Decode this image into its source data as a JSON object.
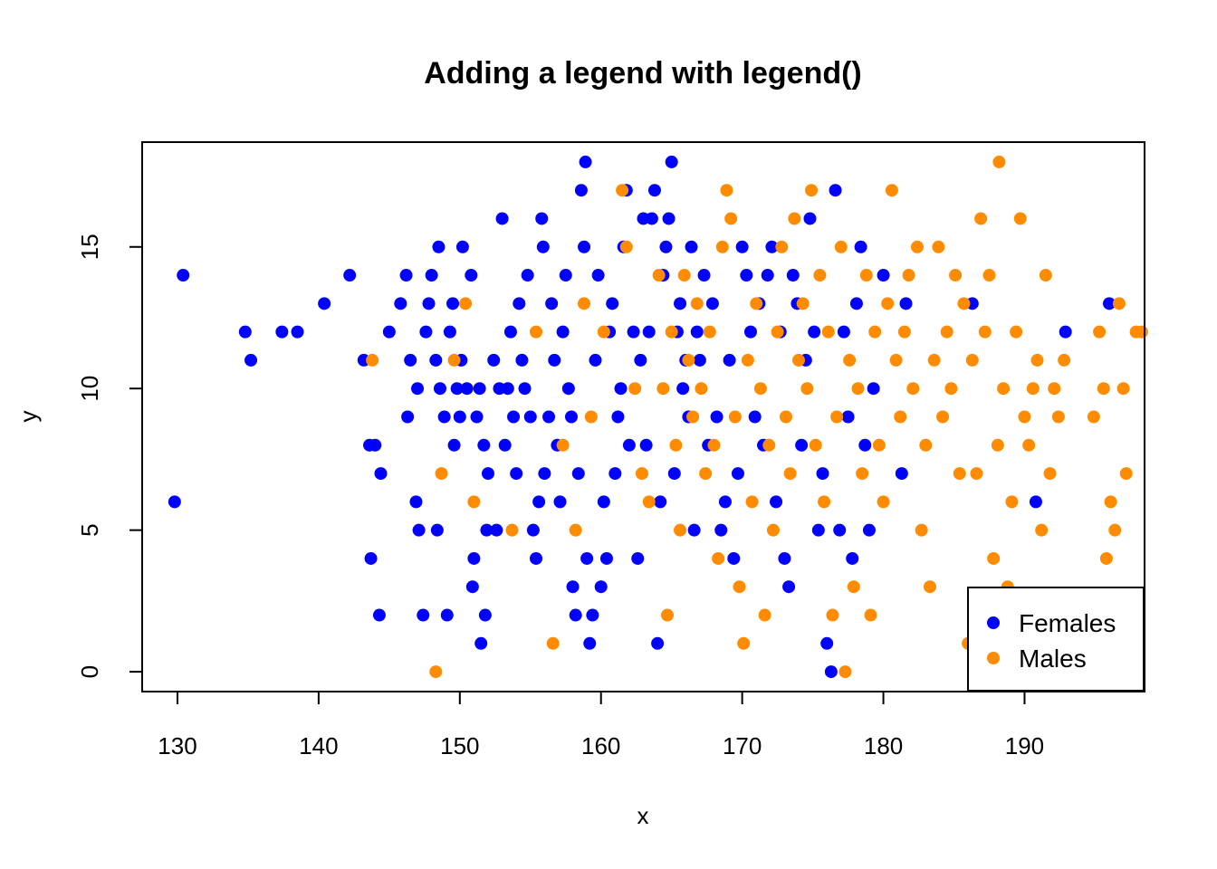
{
  "chart_data": {
    "type": "scatter",
    "title": "Adding a legend with legend()",
    "xlabel": "x",
    "ylabel": "y",
    "xlim": [
      127.5,
      198.5
    ],
    "ylim": [
      -0.7,
      18.7
    ],
    "x_ticks": [
      130,
      140,
      150,
      160,
      170,
      180,
      190
    ],
    "x_tick_labels": [
      "130",
      "140",
      "150",
      "160",
      "170",
      "180",
      "190"
    ],
    "y_ticks": [
      0,
      5,
      10,
      15
    ],
    "y_tick_labels": [
      "0",
      "5",
      "10",
      "15"
    ],
    "grid": false,
    "legend_position": "bottom-right",
    "series": [
      {
        "name": "Females",
        "color": "#0000ff",
        "points": [
          [
            129.8,
            6
          ],
          [
            130.4,
            14
          ],
          [
            134.8,
            12
          ],
          [
            135.2,
            11
          ],
          [
            137.4,
            12
          ],
          [
            138.5,
            12
          ],
          [
            140.4,
            13
          ],
          [
            142.2,
            14
          ],
          [
            143.2,
            11
          ],
          [
            143.6,
            8
          ],
          [
            143.7,
            4
          ],
          [
            144.0,
            8
          ],
          [
            144.3,
            2
          ],
          [
            144.4,
            7
          ],
          [
            145.0,
            12
          ],
          [
            145.8,
            13
          ],
          [
            146.2,
            14
          ],
          [
            146.3,
            9
          ],
          [
            146.5,
            11
          ],
          [
            146.9,
            6
          ],
          [
            147.0,
            10
          ],
          [
            147.1,
            5
          ],
          [
            147.4,
            2
          ],
          [
            147.6,
            12
          ],
          [
            147.8,
            13
          ],
          [
            148.0,
            14
          ],
          [
            148.3,
            11
          ],
          [
            148.4,
            5
          ],
          [
            148.5,
            15
          ],
          [
            148.6,
            10
          ],
          [
            148.9,
            9
          ],
          [
            149.1,
            2
          ],
          [
            149.3,
            12
          ],
          [
            149.5,
            13
          ],
          [
            149.6,
            8
          ],
          [
            149.8,
            10
          ],
          [
            150.0,
            9
          ],
          [
            150.1,
            11
          ],
          [
            150.2,
            15
          ],
          [
            150.5,
            10
          ],
          [
            150.8,
            14
          ],
          [
            150.9,
            3
          ],
          [
            151.0,
            4
          ],
          [
            151.2,
            9
          ],
          [
            151.4,
            10
          ],
          [
            151.5,
            1
          ],
          [
            151.7,
            8
          ],
          [
            151.8,
            2
          ],
          [
            151.9,
            5
          ],
          [
            152.0,
            7
          ],
          [
            152.4,
            11
          ],
          [
            152.6,
            5
          ],
          [
            152.8,
            10
          ],
          [
            153.0,
            16
          ],
          [
            153.2,
            8
          ],
          [
            153.4,
            10
          ],
          [
            153.6,
            12
          ],
          [
            153.8,
            9
          ],
          [
            154.0,
            7
          ],
          [
            154.2,
            13
          ],
          [
            154.4,
            11
          ],
          [
            154.6,
            10
          ],
          [
            154.8,
            14
          ],
          [
            155.0,
            9
          ],
          [
            155.2,
            5
          ],
          [
            155.4,
            4
          ],
          [
            155.6,
            6
          ],
          [
            155.8,
            16
          ],
          [
            155.9,
            15
          ],
          [
            156.0,
            7
          ],
          [
            156.3,
            9
          ],
          [
            156.5,
            13
          ],
          [
            156.7,
            11
          ],
          [
            156.9,
            8
          ],
          [
            157.1,
            6
          ],
          [
            157.3,
            12
          ],
          [
            157.5,
            14
          ],
          [
            157.7,
            10
          ],
          [
            157.9,
            9
          ],
          [
            158.0,
            3
          ],
          [
            158.2,
            2
          ],
          [
            158.4,
            7
          ],
          [
            158.6,
            17
          ],
          [
            158.8,
            15
          ],
          [
            158.9,
            18
          ],
          [
            159.0,
            4
          ],
          [
            159.2,
            1
          ],
          [
            159.4,
            2
          ],
          [
            159.6,
            11
          ],
          [
            159.8,
            14
          ],
          [
            160.0,
            3
          ],
          [
            160.2,
            6
          ],
          [
            160.4,
            4
          ],
          [
            160.6,
            12
          ],
          [
            160.8,
            13
          ],
          [
            161.0,
            7
          ],
          [
            161.2,
            9
          ],
          [
            161.4,
            10
          ],
          [
            161.6,
            15
          ],
          [
            161.8,
            17
          ],
          [
            162.0,
            8
          ],
          [
            162.3,
            12
          ],
          [
            162.6,
            4
          ],
          [
            162.8,
            11
          ],
          [
            163.0,
            16
          ],
          [
            163.2,
            8
          ],
          [
            163.4,
            12
          ],
          [
            163.6,
            16
          ],
          [
            163.8,
            17
          ],
          [
            164.0,
            1
          ],
          [
            164.2,
            6
          ],
          [
            164.4,
            14
          ],
          [
            164.6,
            15
          ],
          [
            164.8,
            16
          ],
          [
            165.0,
            18
          ],
          [
            165.2,
            7
          ],
          [
            165.4,
            12
          ],
          [
            165.6,
            13
          ],
          [
            165.8,
            10
          ],
          [
            166.0,
            11
          ],
          [
            166.2,
            9
          ],
          [
            166.4,
            15
          ],
          [
            166.6,
            5
          ],
          [
            166.8,
            12
          ],
          [
            167.0,
            11
          ],
          [
            167.3,
            14
          ],
          [
            167.6,
            8
          ],
          [
            167.9,
            13
          ],
          [
            168.2,
            9
          ],
          [
            168.5,
            5
          ],
          [
            168.8,
            6
          ],
          [
            169.1,
            11
          ],
          [
            169.4,
            4
          ],
          [
            169.7,
            7
          ],
          [
            170.0,
            15
          ],
          [
            170.3,
            14
          ],
          [
            170.6,
            12
          ],
          [
            170.9,
            9
          ],
          [
            171.2,
            13
          ],
          [
            171.5,
            8
          ],
          [
            171.8,
            14
          ],
          [
            172.1,
            15
          ],
          [
            172.4,
            6
          ],
          [
            172.7,
            12
          ],
          [
            173.0,
            4
          ],
          [
            173.3,
            3
          ],
          [
            173.6,
            14
          ],
          [
            173.9,
            13
          ],
          [
            174.2,
            8
          ],
          [
            174.5,
            11
          ],
          [
            174.8,
            16
          ],
          [
            175.1,
            12
          ],
          [
            175.4,
            5
          ],
          [
            175.7,
            7
          ],
          [
            176.0,
            1
          ],
          [
            176.3,
            0
          ],
          [
            176.6,
            17
          ],
          [
            176.9,
            5
          ],
          [
            177.2,
            12
          ],
          [
            177.5,
            9
          ],
          [
            177.8,
            4
          ],
          [
            178.1,
            13
          ],
          [
            178.4,
            15
          ],
          [
            178.7,
            8
          ],
          [
            179.0,
            5
          ],
          [
            179.3,
            10
          ],
          [
            180.0,
            14
          ],
          [
            181.3,
            7
          ],
          [
            181.6,
            13
          ],
          [
            186.3,
            13
          ],
          [
            190.8,
            6
          ],
          [
            192.9,
            12
          ],
          [
            196.0,
            13
          ]
        ]
      },
      {
        "name": "Males",
        "color": "#ff8c00",
        "points": [
          [
            143.8,
            11
          ],
          [
            148.3,
            0
          ],
          [
            148.7,
            7
          ],
          [
            149.6,
            11
          ],
          [
            150.4,
            13
          ],
          [
            151.0,
            6
          ],
          [
            153.7,
            5
          ],
          [
            155.4,
            12
          ],
          [
            156.6,
            1
          ],
          [
            157.3,
            8
          ],
          [
            158.2,
            5
          ],
          [
            158.8,
            13
          ],
          [
            159.3,
            9
          ],
          [
            160.2,
            12
          ],
          [
            161.5,
            17
          ],
          [
            161.8,
            15
          ],
          [
            162.4,
            10
          ],
          [
            162.9,
            7
          ],
          [
            163.4,
            6
          ],
          [
            164.1,
            14
          ],
          [
            164.4,
            10
          ],
          [
            164.7,
            2
          ],
          [
            165.0,
            12
          ],
          [
            165.3,
            8
          ],
          [
            165.6,
            5
          ],
          [
            165.9,
            14
          ],
          [
            166.2,
            11
          ],
          [
            166.5,
            9
          ],
          [
            166.8,
            13
          ],
          [
            167.1,
            10
          ],
          [
            167.4,
            7
          ],
          [
            167.7,
            12
          ],
          [
            168.0,
            8
          ],
          [
            168.3,
            4
          ],
          [
            168.6,
            15
          ],
          [
            168.9,
            17
          ],
          [
            169.2,
            16
          ],
          [
            169.5,
            9
          ],
          [
            169.8,
            3
          ],
          [
            170.1,
            1
          ],
          [
            170.4,
            11
          ],
          [
            170.7,
            6
          ],
          [
            171.0,
            13
          ],
          [
            171.3,
            10
          ],
          [
            171.6,
            2
          ],
          [
            171.9,
            8
          ],
          [
            172.2,
            5
          ],
          [
            172.5,
            12
          ],
          [
            172.8,
            15
          ],
          [
            173.1,
            9
          ],
          [
            173.4,
            7
          ],
          [
            173.7,
            16
          ],
          [
            174.0,
            11
          ],
          [
            174.3,
            13
          ],
          [
            174.6,
            10
          ],
          [
            174.9,
            17
          ],
          [
            175.2,
            8
          ],
          [
            175.5,
            14
          ],
          [
            175.8,
            6
          ],
          [
            176.1,
            12
          ],
          [
            176.4,
            2
          ],
          [
            176.7,
            9
          ],
          [
            177.0,
            15
          ],
          [
            177.3,
            0
          ],
          [
            177.6,
            11
          ],
          [
            177.9,
            3
          ],
          [
            178.2,
            10
          ],
          [
            178.5,
            7
          ],
          [
            178.8,
            14
          ],
          [
            179.1,
            2
          ],
          [
            179.4,
            12
          ],
          [
            179.7,
            8
          ],
          [
            180.0,
            6
          ],
          [
            180.3,
            13
          ],
          [
            180.6,
            17
          ],
          [
            180.9,
            11
          ],
          [
            181.2,
            9
          ],
          [
            181.5,
            12
          ],
          [
            181.8,
            14
          ],
          [
            182.1,
            10
          ],
          [
            182.4,
            15
          ],
          [
            182.7,
            5
          ],
          [
            183.0,
            8
          ],
          [
            183.3,
            3
          ],
          [
            183.6,
            11
          ],
          [
            183.9,
            15
          ],
          [
            184.2,
            9
          ],
          [
            184.5,
            12
          ],
          [
            184.8,
            10
          ],
          [
            185.1,
            14
          ],
          [
            185.4,
            7
          ],
          [
            185.7,
            13
          ],
          [
            186.0,
            1
          ],
          [
            186.3,
            11
          ],
          [
            186.6,
            7
          ],
          [
            186.9,
            16
          ],
          [
            187.2,
            12
          ],
          [
            187.5,
            14
          ],
          [
            187.8,
            4
          ],
          [
            188.1,
            8
          ],
          [
            188.2,
            18
          ],
          [
            188.5,
            10
          ],
          [
            188.8,
            3
          ],
          [
            189.1,
            6
          ],
          [
            189.4,
            12
          ],
          [
            189.7,
            16
          ],
          [
            190.0,
            9
          ],
          [
            190.3,
            8
          ],
          [
            190.6,
            10
          ],
          [
            190.9,
            11
          ],
          [
            191.2,
            5
          ],
          [
            191.5,
            14
          ],
          [
            191.8,
            7
          ],
          [
            192.1,
            10
          ],
          [
            192.4,
            9
          ],
          [
            192.8,
            11
          ],
          [
            194.9,
            9
          ],
          [
            195.3,
            12
          ],
          [
            195.6,
            10
          ],
          [
            195.8,
            4
          ],
          [
            196.1,
            6
          ],
          [
            196.4,
            5
          ],
          [
            196.7,
            13
          ],
          [
            197.0,
            10
          ],
          [
            197.2,
            7
          ],
          [
            197.9,
            12
          ],
          [
            198.3,
            12
          ]
        ]
      }
    ]
  }
}
